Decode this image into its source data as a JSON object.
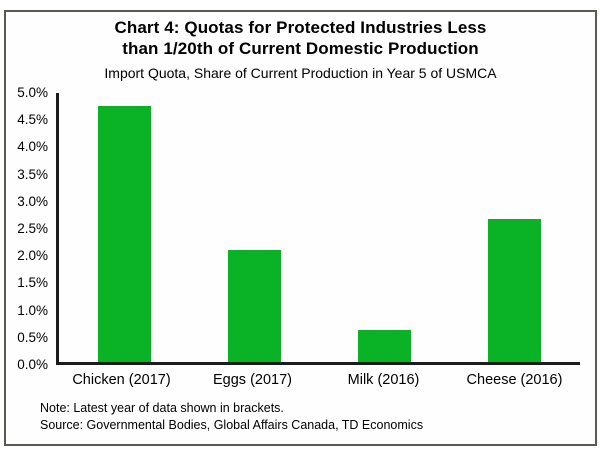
{
  "header": {
    "title_line1": "Chart 4: Quotas for Protected Industries Less",
    "title_line2": "than 1/20th of Current Domestic Production",
    "subtitle": "Import Quota, Share of Current Production in Year 5 of USMCA"
  },
  "notes": {
    "note": "Note: Latest year of data shown in brackets.",
    "source": "Source: Governmental Bodies, Global Affairs Canada, TD Economics"
  },
  "colors": {
    "bar": "#0ab226",
    "axis": "#1c1c1c",
    "frame_border": "#5a5a50"
  },
  "chart_data": {
    "type": "bar",
    "title": "Chart 4: Quotas for Protected Industries Less than 1/20th of Current Domestic Production",
    "subtitle": "Import Quota, Share of Current Production in Year 5 of USMCA",
    "categories": [
      "Chicken (2017)",
      "Eggs (2017)",
      "Milk (2016)",
      "Cheese (2016)"
    ],
    "values": [
      4.75,
      2.08,
      0.6,
      2.65
    ],
    "unit": "%",
    "xlabel": "",
    "ylabel": "Import Quota, Share of Current Production",
    "ylim": [
      0,
      5.0
    ],
    "ytick_step": 0.5,
    "ytick_labels": [
      "5.0%",
      "4.5%",
      "4.0%",
      "3.5%",
      "3.0%",
      "2.5%",
      "2.0%",
      "1.5%",
      "1.0%",
      "0.5%",
      "0.0%"
    ],
    "grid": false,
    "legend": false,
    "bar_color": "#0ab226"
  }
}
